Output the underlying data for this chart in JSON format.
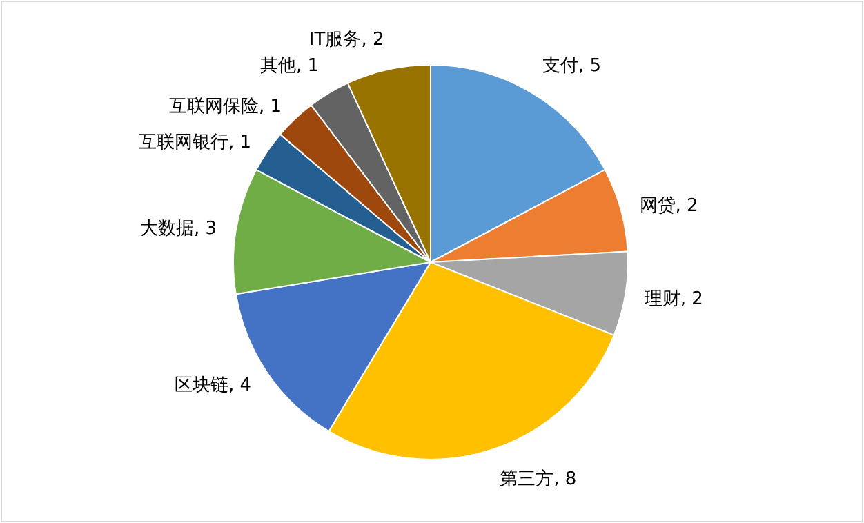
{
  "chart_data": {
    "type": "pie",
    "categories": [
      "支付",
      "网贷",
      "理财",
      "第三方",
      "区块链",
      "大数据",
      "互联网银行",
      "互联网保险",
      "其他",
      "IT服务"
    ],
    "values": [
      5,
      2,
      2,
      8,
      4,
      3,
      1,
      1,
      1,
      2
    ],
    "value_labels": [
      ", 5",
      ", 2",
      ", 2",
      ", 8",
      ", 4",
      ", 3",
      ", 1",
      ", 1",
      ", 1",
      ", 2"
    ],
    "colors": [
      "#5b9bd5",
      "#ed7d31",
      "#a5a5a5",
      "#ffc000",
      "#4472c4",
      "#70ad47",
      "#255e91",
      "#9e480e",
      "#636363",
      "#997300"
    ],
    "legend": false
  }
}
